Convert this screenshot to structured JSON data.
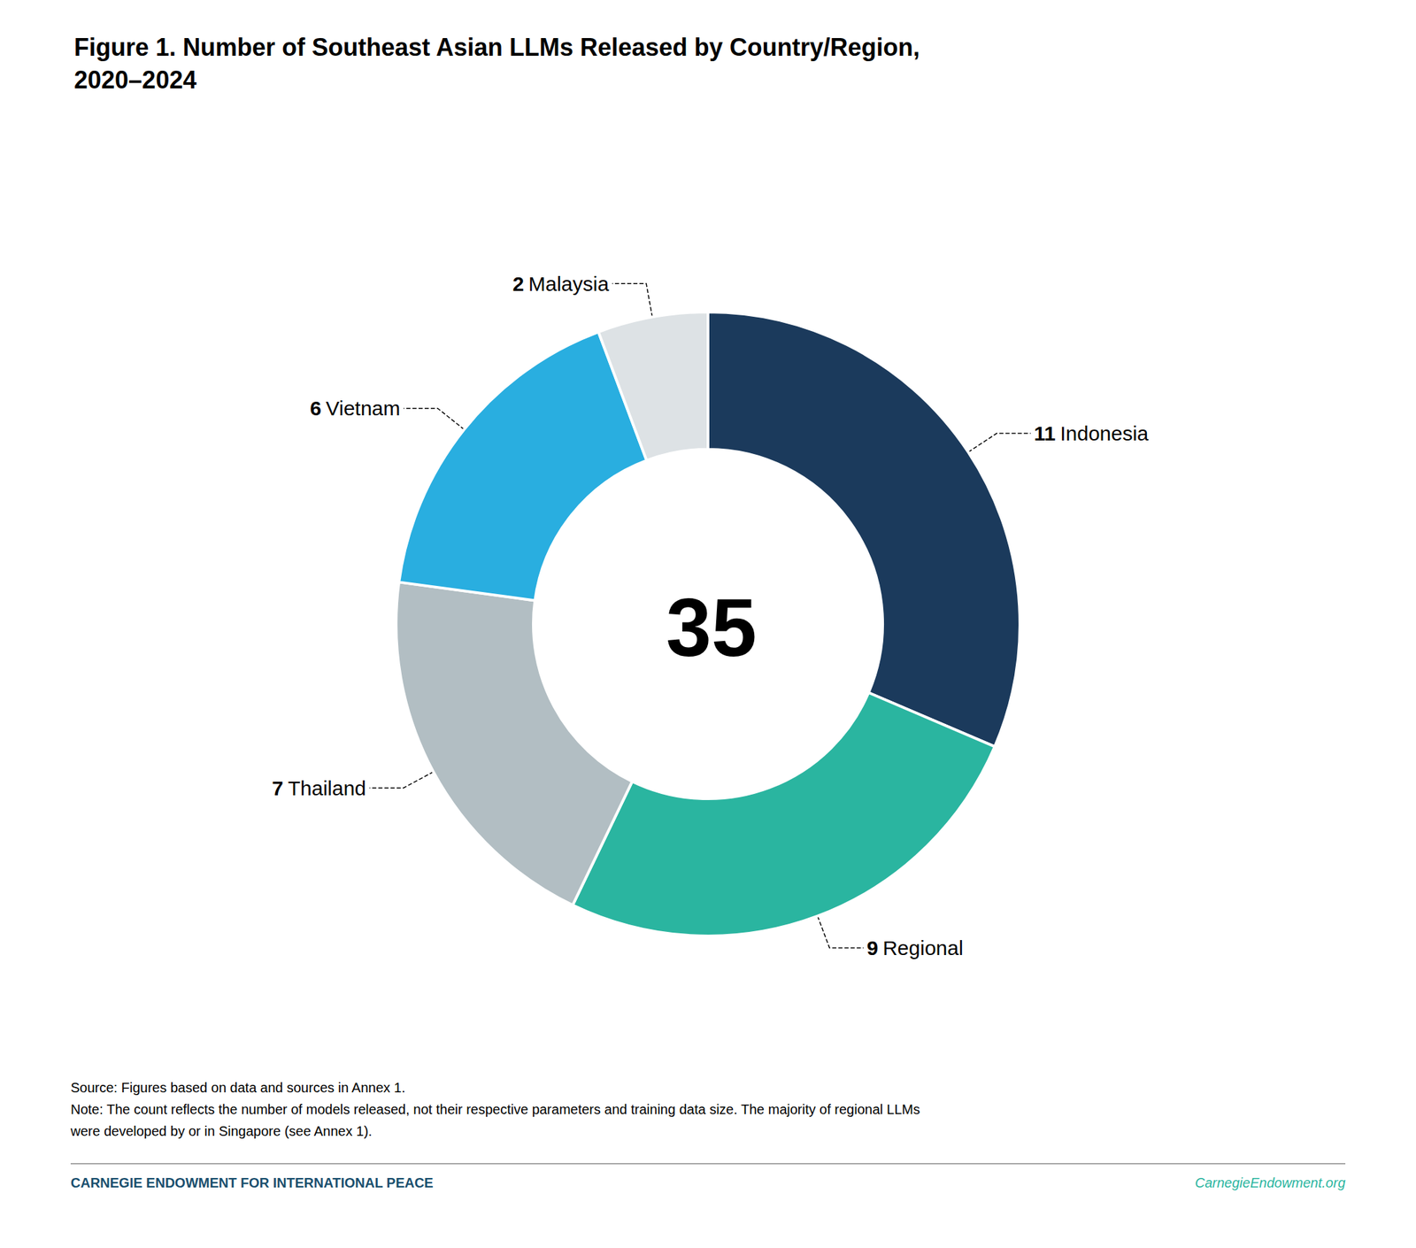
{
  "chart_data": {
    "type": "donut",
    "title": "Figure 1. Number of Southeast Asian LLMs Released by Country/Region,\n2020–2024",
    "categories": [
      "Indonesia",
      "Regional",
      "Thailand",
      "Vietnam",
      "Malaysia"
    ],
    "values": [
      11,
      9,
      7,
      6,
      2
    ],
    "colors": [
      "#1b3a5c",
      "#2ab5a0",
      "#b2bec3",
      "#29aee0",
      "#dde2e5"
    ],
    "data_labels": true,
    "total": 35,
    "notes": [
      "Source: Figures based on data and sources in Annex 1.",
      "Note: The count reflects the number of models released, not their respective parameters and training data size. The majority of regional LLMs",
      "were developed by or in Singapore (see Annex 1)."
    ],
    "footer": [
      {
        "text": "CARNEGIE ENDOWMENT FOR INTERNATIONAL PEACE",
        "color": "#1a4f6e"
      },
      {
        "text": "CarnegieEndowment.org",
        "color": "#2ab5a0"
      }
    ]
  }
}
